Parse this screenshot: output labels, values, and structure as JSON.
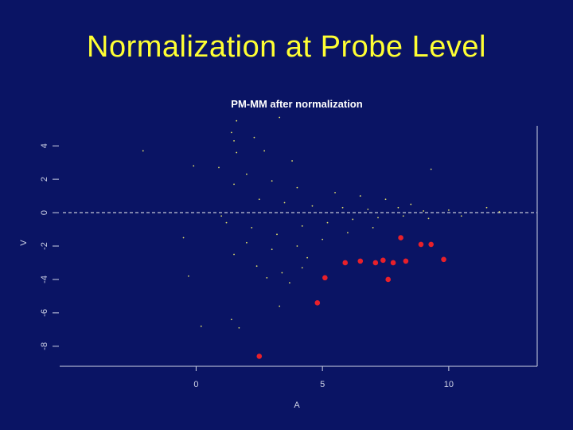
{
  "slide": {
    "title": "Normalization at Probe Level"
  },
  "colors": {
    "background": "#0a1464",
    "title": "#ffff33",
    "axis": "#cfd3e6",
    "points": "#e3e06a",
    "highlight": "#e8202a"
  },
  "chart_data": {
    "type": "scatter",
    "title": "PM-MM after normalization",
    "xlabel": "A",
    "ylabel": "V",
    "xlim": [
      -5.4,
      13.5
    ],
    "ylim": [
      -9.2,
      5.2
    ],
    "x_ticks": [
      0,
      5,
      10
    ],
    "x_tick_labels": [
      "0",
      "5",
      "10"
    ],
    "y_ticks": [
      -8,
      -6,
      -4,
      -2,
      0,
      2,
      4
    ],
    "y_tick_labels": [
      "-8",
      "-6",
      "-4",
      "-2",
      "0",
      "2",
      "4"
    ],
    "reference_line": {
      "y": 0,
      "style": "dashed"
    },
    "grid": false,
    "legend": "none",
    "series": [
      {
        "style": "small-yellow-dots",
        "sampled": true,
        "points": [
          [
            1.6,
            5.5
          ],
          [
            3.3,
            5.7
          ],
          [
            1.5,
            4.3
          ],
          [
            2.3,
            4.5
          ],
          [
            1.4,
            4.8
          ],
          [
            1.6,
            3.6
          ],
          [
            2.7,
            3.7
          ],
          [
            9.3,
            2.6
          ],
          [
            -2.1,
            3.7
          ],
          [
            -0.1,
            2.8
          ],
          [
            0.9,
            2.7
          ],
          [
            2.0,
            2.3
          ],
          [
            3.0,
            1.9
          ],
          [
            1.5,
            1.7
          ],
          [
            4.0,
            1.5
          ],
          [
            5.5,
            1.2
          ],
          [
            6.5,
            1.0
          ],
          [
            7.5,
            0.8
          ],
          [
            8.5,
            0.5
          ],
          [
            2.5,
            0.8
          ],
          [
            3.5,
            0.6
          ],
          [
            4.6,
            0.4
          ],
          [
            5.8,
            0.3
          ],
          [
            6.8,
            0.2
          ],
          [
            8.0,
            0.3
          ],
          [
            9.0,
            0.1
          ],
          [
            10.0,
            0.15
          ],
          [
            11.5,
            0.3
          ],
          [
            12.0,
            0.05
          ],
          [
            1.2,
            -0.6
          ],
          [
            2.2,
            -0.9
          ],
          [
            3.2,
            -1.3
          ],
          [
            4.2,
            -0.8
          ],
          [
            5.2,
            -0.6
          ],
          [
            6.2,
            -0.4
          ],
          [
            7.2,
            -0.3
          ],
          [
            8.2,
            -0.2
          ],
          [
            9.2,
            -0.35
          ],
          [
            10.5,
            -0.2
          ],
          [
            2.0,
            -1.8
          ],
          [
            3.0,
            -2.2
          ],
          [
            4.0,
            -2.0
          ],
          [
            5.0,
            -1.6
          ],
          [
            6.0,
            -1.2
          ],
          [
            7.0,
            -0.9
          ],
          [
            2.4,
            -3.2
          ],
          [
            3.4,
            -3.6
          ],
          [
            4.4,
            -2.7
          ],
          [
            -0.5,
            -1.5
          ],
          [
            1.5,
            -2.5
          ],
          [
            2.8,
            -3.9
          ],
          [
            3.7,
            -4.2
          ],
          [
            1.4,
            -6.4
          ],
          [
            1.7,
            -6.9
          ],
          [
            4.2,
            -3.3
          ],
          [
            0.2,
            -6.8
          ],
          [
            3.3,
            -5.6
          ],
          [
            -0.3,
            -3.8
          ],
          [
            1.0,
            -0.2
          ],
          [
            3.8,
            3.1
          ]
        ]
      },
      {
        "style": "red-dots",
        "points": [
          [
            2.5,
            -8.6
          ],
          [
            4.8,
            -5.4
          ],
          [
            5.1,
            -3.9
          ],
          [
            5.9,
            -3.0
          ],
          [
            6.5,
            -2.9
          ],
          [
            7.1,
            -3.0
          ],
          [
            7.4,
            -2.85
          ],
          [
            7.6,
            -4.0
          ],
          [
            7.8,
            -3.0
          ],
          [
            8.1,
            -1.5
          ],
          [
            8.3,
            -2.9
          ],
          [
            8.9,
            -1.9
          ],
          [
            9.3,
            -1.9
          ],
          [
            9.8,
            -2.8
          ]
        ]
      }
    ]
  }
}
